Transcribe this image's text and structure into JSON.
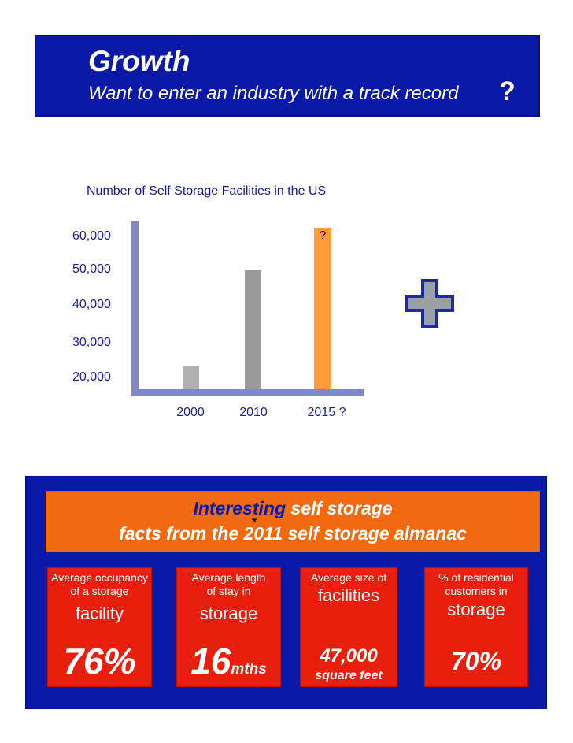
{
  "corner_icon": "plus-icon",
  "header": {
    "title": "Growth",
    "subtitle": "Want to enter an industry with a track record",
    "question_mark": "?"
  },
  "chart_data": {
    "type": "bar",
    "title": "Number of Self Storage Facilities in the US",
    "categories": [
      "2000",
      "2010",
      "2015 ?"
    ],
    "values": [
      23000,
      50000,
      62000
    ],
    "value_labels": [
      "",
      "",
      "?"
    ],
    "yticks": [
      "60,000",
      "50,000",
      "40,000",
      "30,000",
      "20,000"
    ],
    "ytick_values": [
      60000,
      50000,
      40000,
      30000,
      20000
    ],
    "ylim": [
      17000,
      63000
    ],
    "colors": [
      "#b0b0b0",
      "#9a9a9a",
      "#ff9b3c"
    ],
    "axis_color": "#7f88c8",
    "grid": false
  },
  "decoration": {
    "big_plus_icon": "plus-icon",
    "plus_fill": "#9aa0a8",
    "plus_stroke": "#1f2a9e"
  },
  "facts": {
    "banner": {
      "line1_a": "Interesting",
      "line1_b": "self storage",
      "line2": "facts from the 2011 self storage almanac",
      "asterisk": "*"
    },
    "cards": [
      {
        "small": "Average occupancy of a storage",
        "big": "facility",
        "value": "76%",
        "unit": ""
      },
      {
        "small": "Average length of stay in",
        "big": "storage",
        "value": "16",
        "unit": "mths"
      },
      {
        "small": "Average size of",
        "big": "facilities",
        "value": "47,000",
        "unit": "square feet"
      },
      {
        "small": "% of residential customers in",
        "big": "storage",
        "value": "70%",
        "unit": ""
      }
    ]
  },
  "colors": {
    "navy": "#0a1aa6",
    "orange": "#f26a10",
    "red": "#e81e0e"
  }
}
